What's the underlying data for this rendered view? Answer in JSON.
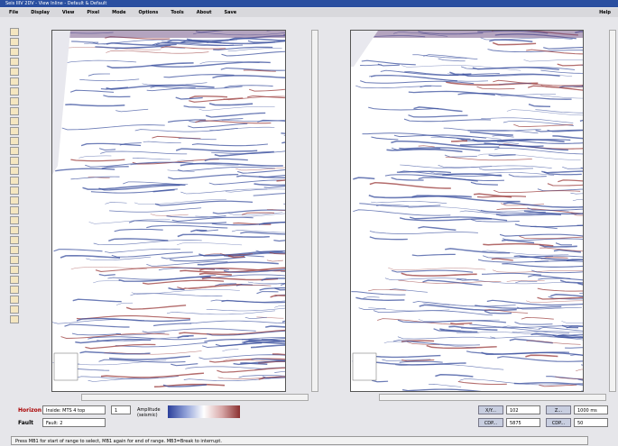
{
  "window": {
    "title": "Seis IIIV 2DV - View Inline - Default & Default"
  },
  "menu": [
    "File",
    "Display",
    "View",
    "Pixel",
    "Mode",
    "Options",
    "Tools",
    "About",
    "Save"
  ],
  "help": "Help",
  "controls": {
    "horizon_label": "Horizon",
    "horizon_value": "Inside: MTS 4 top",
    "horizon_number": "1",
    "fault_label": "Fault",
    "fault_value": "Fault: 2",
    "colorbar_label": "Amplitude (seismic)"
  },
  "fields": [
    {
      "button": "X/Y...",
      "value": "102"
    },
    {
      "button": "Z...",
      "value": "1000 ms"
    },
    {
      "button": "CDP...",
      "value": "5875"
    },
    {
      "button": "CDP...",
      "value": "50"
    }
  ],
  "status": "Press MB1 for start of range to select, MB1 again for end of range. MB3=Break to interrupt."
}
